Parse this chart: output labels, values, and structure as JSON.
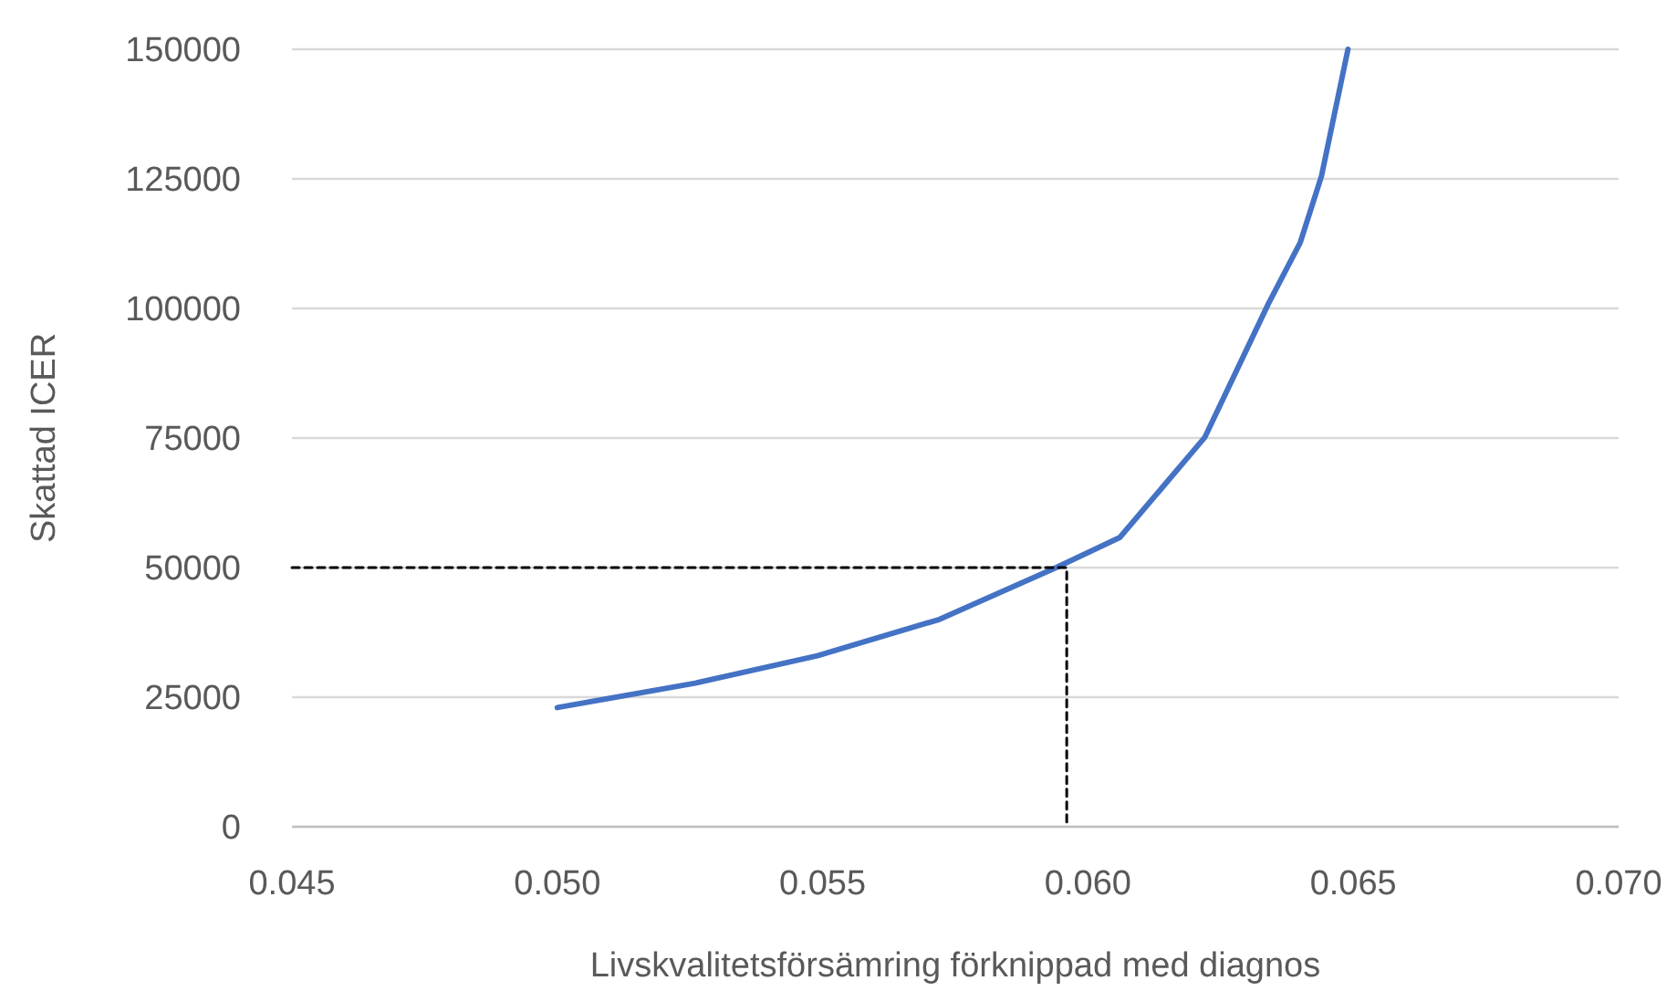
{
  "chart_data": {
    "type": "line",
    "xlabel": "Livskvalitetsförsämring förknippad med diagnos",
    "ylabel": "Skattad ICER",
    "xlim": [
      0.045,
      0.07
    ],
    "xticks": [
      {
        "value": 0.045,
        "label": "0.045"
      },
      {
        "value": 0.05,
        "label": "0.050"
      },
      {
        "value": 0.055,
        "label": "0.055"
      },
      {
        "value": 0.06,
        "label": "0.060"
      },
      {
        "value": 0.065,
        "label": "0.065"
      },
      {
        "value": 0.07,
        "label": "0.070"
      }
    ],
    "ylim": [
      0,
      150000
    ],
    "yticks": [
      0,
      25000,
      50000,
      75000,
      100000,
      125000,
      150000
    ],
    "grid": "y",
    "marker": "none",
    "series": [
      {
        "color": "#4472c4",
        "line_style": "solid",
        "x": [
          0.05,
          0.0526,
          0.0549,
          0.0572,
          0.0594,
          0.0606,
          0.0622,
          0.0634,
          0.064,
          0.0644,
          0.0649
        ],
        "values": [
          23000,
          27700,
          33000,
          40000,
          50000,
          55800,
          75100,
          100900,
          112700,
          125500,
          150000
        ]
      },
      {
        "color": "#000000",
        "line_style": "dashed",
        "x": [
          0.045,
          0.0596,
          0.0596
        ],
        "values": [
          50000,
          50000,
          0
        ]
      }
    ]
  }
}
